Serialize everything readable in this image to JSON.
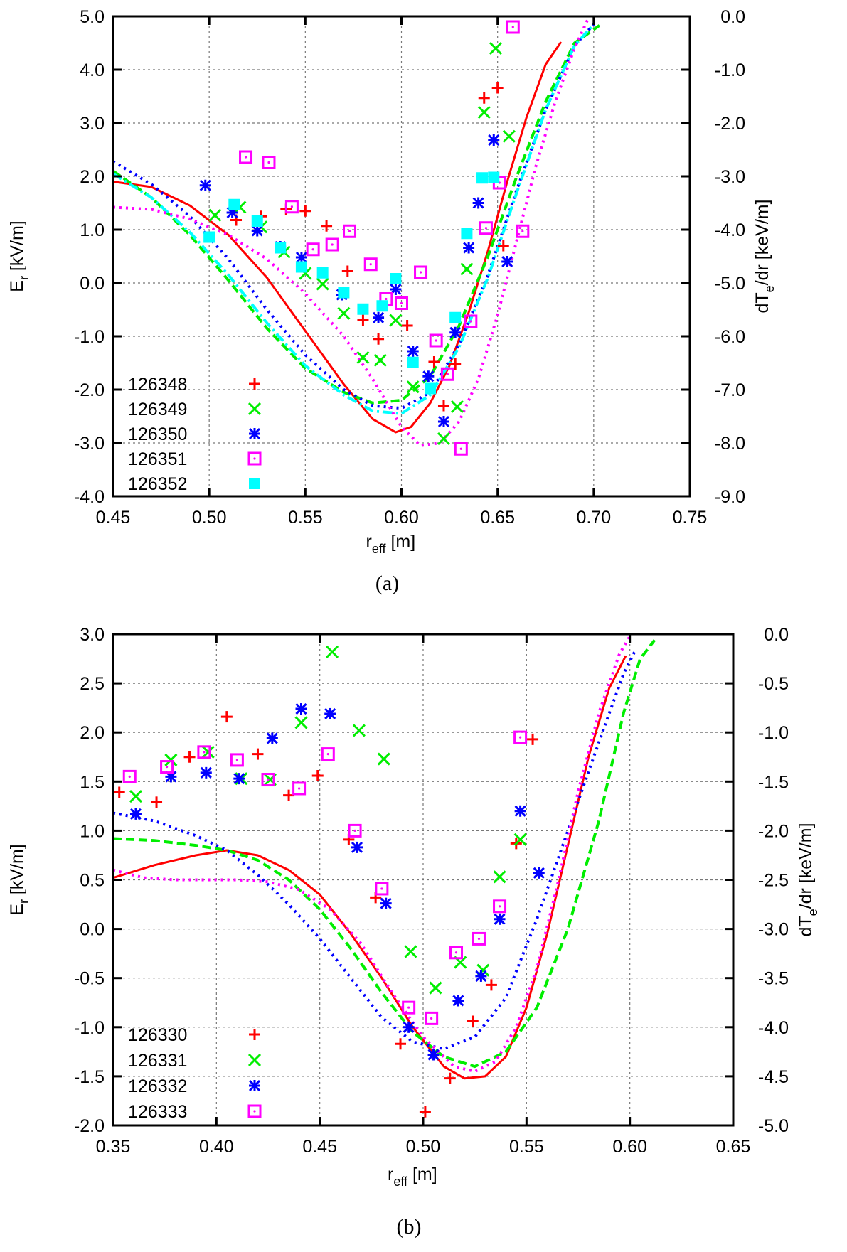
{
  "chart_data": [
    {
      "id": "a",
      "type": "scatter",
      "caption": "(a)",
      "xlabel": "r_eff [m]",
      "xlabel_main": "r",
      "xlabel_sub": "eff",
      "xlabel_unit": "[m]",
      "ylabel_main": "E",
      "ylabel_sub": "r",
      "ylabel_unit": "[kV/m]",
      "y2label_main": "dT",
      "y2label_sub": "e",
      "y2label_unit": "/dr [keV/m]",
      "xlim": [
        0.45,
        0.75
      ],
      "ylim": [
        -4.0,
        5.0
      ],
      "y2lim": [
        -9.0,
        0.0
      ],
      "grid": true,
      "legend_position": "bottom-left",
      "xticks": [
        "0.45",
        "0.50",
        "0.55",
        "0.60",
        "0.65",
        "0.70",
        "0.75"
      ],
      "yticks": [
        "-4.0",
        "-3.0",
        "-2.0",
        "-1.0",
        "0.0",
        "1.0",
        "2.0",
        "3.0",
        "4.0",
        "5.0"
      ],
      "y2ticks": [
        "-9.0",
        "-8.0",
        "-7.0",
        "-6.0",
        "-5.0",
        "-4.0",
        "-3.0",
        "-2.0",
        "-1.0",
        "0.0"
      ],
      "series": [
        {
          "name": "126348",
          "marker": "plus",
          "color": "#ff0000",
          "x": [
            0.514,
            0.527,
            0.54,
            0.55,
            0.561,
            0.572,
            0.58,
            0.588,
            0.603,
            0.617,
            0.622,
            0.628,
            0.643,
            0.65,
            0.653
          ],
          "y": [
            1.18,
            1.25,
            1.38,
            1.35,
            1.07,
            0.22,
            -0.7,
            -1.05,
            -0.8,
            -1.48,
            -2.3,
            -1.52,
            3.47,
            3.66,
            0.7
          ]
        },
        {
          "name": "126349",
          "marker": "x",
          "color": "#00ee00",
          "x": [
            0.503,
            0.516,
            0.527,
            0.539,
            0.55,
            0.559,
            0.57,
            0.58,
            0.589,
            0.597,
            0.606,
            0.622,
            0.629,
            0.634,
            0.643,
            0.649,
            0.656
          ],
          "y": [
            1.27,
            1.42,
            1.05,
            0.58,
            0.18,
            -0.02,
            -0.57,
            -1.4,
            -1.45,
            -0.7,
            -1.95,
            -2.92,
            -2.32,
            0.26,
            3.2,
            4.4,
            2.75
          ]
        },
        {
          "name": "126350",
          "marker": "star",
          "color": "#0000ff",
          "x": [
            0.498,
            0.512,
            0.525,
            0.537,
            0.548,
            0.569,
            0.588,
            0.597,
            0.606,
            0.614,
            0.622,
            0.628,
            0.635,
            0.64,
            0.648,
            0.655
          ],
          "y": [
            1.83,
            1.32,
            0.98,
            0.68,
            0.48,
            -0.22,
            -0.65,
            -0.12,
            -1.28,
            -1.75,
            -2.6,
            -0.93,
            0.66,
            1.5,
            2.68,
            0.4
          ]
        },
        {
          "name": "126351",
          "marker": "box",
          "color": "#ff00ff",
          "x": [
            0.519,
            0.531,
            0.543,
            0.554,
            0.564,
            0.573,
            0.584,
            0.592,
            0.6,
            0.61,
            0.618,
            0.624,
            0.631,
            0.636,
            0.644,
            0.651,
            0.658,
            0.663
          ],
          "y": [
            2.36,
            2.26,
            1.43,
            0.63,
            0.72,
            0.97,
            0.35,
            -0.3,
            -0.38,
            0.2,
            -1.08,
            -1.71,
            -3.11,
            -0.72,
            1.03,
            1.88,
            4.8,
            0.97
          ]
        },
        {
          "name": "126352",
          "marker": "filled-square",
          "color": "#00ffff",
          "x": [
            0.5,
            0.513,
            0.525,
            0.537,
            0.548,
            0.559,
            0.57,
            0.58,
            0.59,
            0.597,
            0.606,
            0.615,
            0.628,
            0.634,
            0.642,
            0.648
          ],
          "y": [
            0.86,
            1.47,
            1.16,
            0.66,
            0.3,
            0.19,
            -0.18,
            -0.49,
            -0.43,
            0.08,
            -1.49,
            -1.98,
            -0.65,
            0.93,
            1.97,
            1.98
          ]
        }
      ],
      "curves_right_axis": [
        {
          "color": "#ff0000",
          "style": "solid",
          "x": [
            0.45,
            0.47,
            0.49,
            0.51,
            0.53,
            0.55,
            0.57,
            0.585,
            0.597,
            0.605,
            0.615,
            0.625,
            0.635,
            0.645,
            0.655,
            0.665,
            0.675,
            0.683
          ],
          "y": [
            -3.1,
            -3.2,
            -3.55,
            -4.1,
            -4.9,
            -5.9,
            -6.9,
            -7.55,
            -7.8,
            -7.7,
            -7.25,
            -6.55,
            -5.55,
            -4.4,
            -3.1,
            -1.9,
            -0.9,
            -0.48
          ]
        },
        {
          "color": "#00ee00",
          "style": "dashed",
          "x": [
            0.45,
            0.47,
            0.49,
            0.51,
            0.53,
            0.55,
            0.57,
            0.585,
            0.6,
            0.615,
            0.63,
            0.645,
            0.66,
            0.675,
            0.69,
            0.703
          ],
          "y": [
            -2.9,
            -3.4,
            -4.1,
            -4.95,
            -5.85,
            -6.6,
            -7.05,
            -7.25,
            -7.2,
            -6.75,
            -5.8,
            -4.5,
            -3.0,
            -1.6,
            -0.5,
            -0.17
          ]
        },
        {
          "color": "#0000ff",
          "style": "dotted",
          "x": [
            0.45,
            0.47,
            0.49,
            0.51,
            0.53,
            0.55,
            0.57,
            0.585,
            0.6,
            0.615,
            0.63,
            0.645,
            0.66,
            0.675,
            0.69,
            0.7
          ],
          "y": [
            -2.72,
            -3.15,
            -3.75,
            -4.55,
            -5.5,
            -6.35,
            -7.0,
            -7.3,
            -7.35,
            -7.05,
            -6.15,
            -4.85,
            -3.25,
            -1.75,
            -0.55,
            -0.15
          ]
        },
        {
          "color": "#00ffff",
          "style": "dashdot",
          "x": [
            0.45,
            0.47,
            0.49,
            0.51,
            0.53,
            0.55,
            0.57,
            0.585,
            0.6,
            0.615,
            0.63,
            0.645,
            0.66,
            0.675,
            0.69,
            0.7
          ],
          "y": [
            -2.95,
            -3.4,
            -4.05,
            -4.85,
            -5.75,
            -6.55,
            -7.1,
            -7.4,
            -7.45,
            -7.1,
            -6.2,
            -4.9,
            -3.3,
            -1.75,
            -0.55,
            -0.15
          ]
        },
        {
          "color": "#ff00ff",
          "style": "dotted",
          "x": [
            0.45,
            0.47,
            0.49,
            0.51,
            0.53,
            0.55,
            0.57,
            0.585,
            0.6,
            0.61,
            0.62,
            0.63,
            0.64,
            0.65,
            0.66,
            0.67,
            0.68,
            0.69,
            0.697
          ],
          "y": [
            -3.58,
            -3.62,
            -3.8,
            -4.1,
            -4.55,
            -5.2,
            -6.0,
            -6.8,
            -7.7,
            -8.05,
            -8.0,
            -7.6,
            -6.8,
            -5.6,
            -4.2,
            -2.8,
            -1.6,
            -0.6,
            -0.05
          ]
        }
      ]
    },
    {
      "id": "b",
      "type": "scatter",
      "caption": "(b)",
      "xlabel": "r_eff [m]",
      "xlabel_main": "r",
      "xlabel_sub": "eff",
      "xlabel_unit": "[m]",
      "ylabel_main": "E",
      "ylabel_sub": "r",
      "ylabel_unit": "[kV/m]",
      "y2label_main": "dT",
      "y2label_sub": "e",
      "y2label_unit": "/dr [keV/m]",
      "xlim": [
        0.35,
        0.65
      ],
      "ylim": [
        -2.0,
        3.0
      ],
      "y2lim": [
        -5.0,
        0.0
      ],
      "grid": true,
      "legend_position": "bottom-left",
      "xticks": [
        "0.35",
        "0.40",
        "0.45",
        "0.50",
        "0.55",
        "0.60",
        "0.65"
      ],
      "yticks": [
        "-2.0",
        "-1.5",
        "-1.0",
        "-0.5",
        "0.0",
        "0.5",
        "1.0",
        "1.5",
        "2.0",
        "2.5",
        "3.0"
      ],
      "y2ticks": [
        "-5.0",
        "-4.5",
        "-4.0",
        "-3.5",
        "-3.0",
        "-2.5",
        "-2.0",
        "-1.5",
        "-1.0",
        "-0.5",
        "0.0"
      ],
      "series": [
        {
          "name": "126330",
          "marker": "plus",
          "color": "#ff0000",
          "x": [
            0.353,
            0.371,
            0.387,
            0.405,
            0.42,
            0.435,
            0.449,
            0.464,
            0.477,
            0.489,
            0.501,
            0.513,
            0.524,
            0.533,
            0.545,
            0.553
          ],
          "y": [
            1.39,
            1.29,
            1.75,
            2.16,
            1.78,
            1.36,
            1.56,
            0.91,
            0.32,
            -1.17,
            -1.86,
            -1.52,
            -0.94,
            -0.57,
            0.87,
            1.93
          ]
        },
        {
          "name": "126331",
          "marker": "x",
          "color": "#00ee00",
          "x": [
            0.361,
            0.378,
            0.396,
            0.412,
            0.426,
            0.441,
            0.456,
            0.469,
            0.481,
            0.494,
            0.506,
            0.518,
            0.529,
            0.537,
            0.547
          ],
          "y": [
            1.35,
            1.72,
            1.8,
            1.53,
            1.52,
            2.1,
            2.82,
            2.02,
            1.73,
            -0.23,
            -0.6,
            -0.34,
            -0.42,
            0.53,
            0.91
          ]
        },
        {
          "name": "126332",
          "marker": "star",
          "color": "#0000ff",
          "x": [
            0.361,
            0.378,
            0.395,
            0.411,
            0.427,
            0.441,
            0.455,
            0.468,
            0.482,
            0.493,
            0.505,
            0.517,
            0.528,
            0.537,
            0.547,
            0.556
          ],
          "y": [
            1.17,
            1.55,
            1.59,
            1.53,
            1.94,
            2.24,
            2.19,
            0.83,
            0.26,
            -1.0,
            -1.28,
            -0.73,
            -0.48,
            0.1,
            1.2,
            0.57
          ]
        },
        {
          "name": "126333",
          "marker": "box",
          "color": "#ff00ff",
          "x": [
            0.358,
            0.376,
            0.394,
            0.41,
            0.425,
            0.44,
            0.454,
            0.467,
            0.48,
            0.493,
            0.504,
            0.516,
            0.527,
            0.537,
            0.547
          ],
          "y": [
            1.55,
            1.65,
            1.8,
            1.72,
            1.52,
            1.43,
            1.78,
            1.0,
            0.41,
            -0.8,
            -0.91,
            -0.24,
            -0.1,
            0.23,
            1.95
          ]
        }
      ],
      "curves_right_axis": [
        {
          "color": "#ff0000",
          "style": "solid",
          "x": [
            0.35,
            0.37,
            0.39,
            0.405,
            0.42,
            0.435,
            0.45,
            0.465,
            0.48,
            0.495,
            0.51,
            0.52,
            0.53,
            0.54,
            0.55,
            0.56,
            0.57,
            0.58,
            0.59,
            0.598
          ],
          "y": [
            -2.48,
            -2.35,
            -2.25,
            -2.2,
            -2.25,
            -2.4,
            -2.65,
            -3.05,
            -3.5,
            -4.0,
            -4.4,
            -4.52,
            -4.5,
            -4.3,
            -3.8,
            -3.05,
            -2.15,
            -1.25,
            -0.55,
            -0.22
          ]
        },
        {
          "color": "#00ee00",
          "style": "dashed",
          "x": [
            0.35,
            0.37,
            0.39,
            0.405,
            0.42,
            0.435,
            0.45,
            0.465,
            0.48,
            0.495,
            0.51,
            0.525,
            0.54,
            0.555,
            0.57,
            0.585,
            0.597,
            0.605,
            0.612
          ],
          "y": [
            -2.08,
            -2.1,
            -2.15,
            -2.2,
            -2.3,
            -2.5,
            -2.8,
            -3.2,
            -3.65,
            -4.05,
            -4.3,
            -4.4,
            -4.25,
            -3.8,
            -3.0,
            -1.9,
            -0.8,
            -0.25,
            -0.06
          ]
        },
        {
          "color": "#0000ff",
          "style": "dotted",
          "x": [
            0.35,
            0.37,
            0.39,
            0.405,
            0.42,
            0.435,
            0.45,
            0.465,
            0.48,
            0.495,
            0.51,
            0.525,
            0.54,
            0.555,
            0.57,
            0.585,
            0.597,
            0.603
          ],
          "y": [
            -1.82,
            -1.9,
            -2.05,
            -2.2,
            -2.45,
            -2.75,
            -3.1,
            -3.5,
            -3.9,
            -4.15,
            -4.22,
            -4.1,
            -3.7,
            -2.9,
            -2.0,
            -1.1,
            -0.4,
            -0.15
          ]
        },
        {
          "color": "#ff00ff",
          "style": "dotted",
          "x": [
            0.35,
            0.365,
            0.38,
            0.395,
            0.41,
            0.425,
            0.44,
            0.455,
            0.47,
            0.485,
            0.5,
            0.515,
            0.525,
            0.535,
            0.545,
            0.555,
            0.565,
            0.575,
            0.585,
            0.595,
            0.6
          ],
          "y": [
            -2.4,
            -2.48,
            -2.5,
            -2.5,
            -2.5,
            -2.52,
            -2.6,
            -2.8,
            -3.15,
            -3.65,
            -4.1,
            -4.4,
            -4.45,
            -4.35,
            -4.0,
            -3.4,
            -2.55,
            -1.6,
            -0.8,
            -0.2,
            -0.02
          ]
        }
      ]
    }
  ]
}
